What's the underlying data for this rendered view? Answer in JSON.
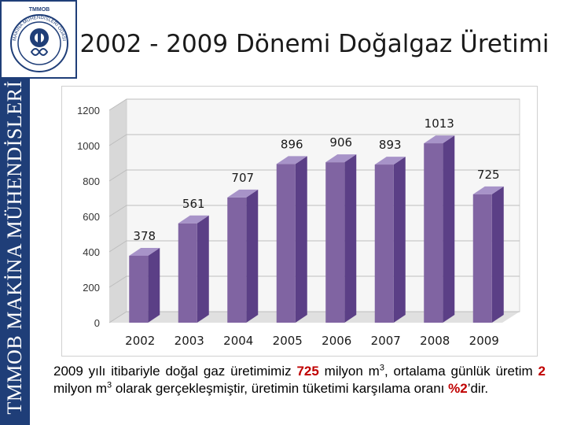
{
  "page": {
    "title": "2002 - 2009 Dönemi Doğalgaz Üretimi",
    "side_text": "TMMOB MAKİNA MÜHENDİSLERİ ODASI",
    "logo": {
      "top_text": "TMMOB",
      "ring_text": "MAKİNA MÜHENDİSLERİ ODASI"
    }
  },
  "chart_data": {
    "type": "bar",
    "categories": [
      "2002",
      "2003",
      "2004",
      "2005",
      "2006",
      "2007",
      "2008",
      "2009"
    ],
    "values": [
      378,
      561,
      707,
      896,
      906,
      893,
      1013,
      725
    ],
    "yticks": [
      0,
      200,
      400,
      600,
      800,
      1000,
      1200
    ],
    "ylim": [
      0,
      1200
    ],
    "title": "",
    "xlabel": "",
    "ylabel": "",
    "grid": true,
    "three_d": true,
    "bar_color": "#8064a2",
    "data_labels": true
  },
  "footer": {
    "p1": "2009 yılı itibariyle doğal gaz üretimimiz ",
    "h1": "725",
    "p2": " milyon m",
    "s1": "3",
    "p3": ", ortalama günlük üretim ",
    "h2": "2",
    "p4": " milyon m",
    "s2": "3",
    "p5": " olarak gerçekleşmiştir, üretimin tüketimi karşılama oranı ",
    "h3": "%2",
    "p6": "’dir."
  }
}
